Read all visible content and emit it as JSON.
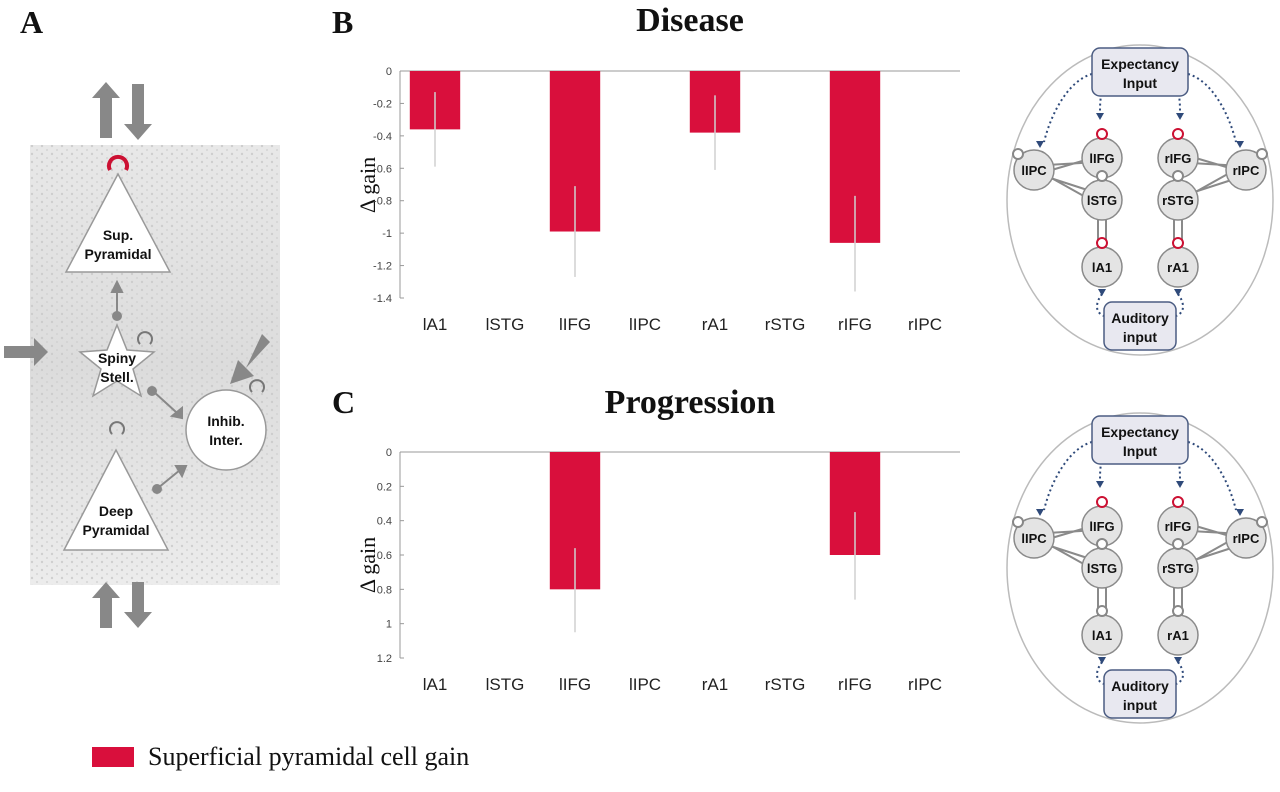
{
  "panels": {
    "a": "A",
    "b": "B",
    "c": "C"
  },
  "colors": {
    "bar": "#d90f3c",
    "error": "#d0d0d0",
    "axis": "#999999",
    "node": "#e4e4e4",
    "node_stroke": "#8a8a8a",
    "arrow": "#8a8a8a",
    "dotted": "#2f4a7a",
    "gain_circle": "#cc1133"
  },
  "circuit": {
    "sup_pyramidal": [
      "Sup.",
      "Pyramidal"
    ],
    "spiny_stellate": [
      "Spiny",
      "Stell."
    ],
    "inhib_inter": [
      "Inhib.",
      "Inter."
    ],
    "deep_pyramidal": [
      "Deep",
      "Pyramidal"
    ]
  },
  "network": {
    "expectancy": [
      "Expectancy",
      "Input"
    ],
    "auditory": [
      "Auditory",
      "input"
    ],
    "nodes": [
      "lIFG",
      "rIFG",
      "lIPC",
      "rIPC",
      "lSTG",
      "rSTG",
      "lA1",
      "rA1"
    ]
  },
  "legend": {
    "label": "Superficial pyramidal cell gain"
  },
  "chart_data": [
    {
      "type": "bar",
      "title": "Disease",
      "ylabel": "Δ gain",
      "categories": [
        "lA1",
        "lSTG",
        "lIFG",
        "lIPC",
        "rA1",
        "rSTG",
        "rIFG",
        "rIPC"
      ],
      "series": [
        {
          "name": "Superficial pyramidal cell gain",
          "values": [
            -0.36,
            0,
            -0.99,
            0,
            -0.38,
            0,
            -1.06,
            0
          ],
          "error_low": [
            -0.59,
            null,
            -1.27,
            null,
            -0.61,
            null,
            -1.36,
            null
          ],
          "error_high": [
            -0.13,
            null,
            -0.71,
            null,
            -0.15,
            null,
            -0.77,
            null
          ]
        }
      ],
      "ylim": [
        -1.4,
        0
      ],
      "yticks": [
        "0",
        "-0.2",
        "-0.4",
        "-0.6",
        "-0.8",
        "-1",
        "-1.2",
        "-1.4"
      ],
      "ytick_values": [
        0,
        -0.2,
        -0.4,
        -0.6,
        -0.8,
        -1,
        -1.2,
        -1.4
      ]
    },
    {
      "type": "bar",
      "title": "Progression",
      "ylabel": "Δ gain",
      "categories": [
        "lA1",
        "lSTG",
        "lIFG",
        "lIPC",
        "rA1",
        "rSTG",
        "rIFG",
        "rIPC"
      ],
      "series": [
        {
          "name": "Superficial pyramidal cell gain",
          "values": [
            0,
            0,
            0.8,
            0,
            0,
            0,
            0.6,
            0
          ],
          "error_low": [
            null,
            null,
            0.56,
            null,
            null,
            null,
            0.35,
            null
          ],
          "error_high": [
            null,
            null,
            1.05,
            null,
            null,
            null,
            0.86,
            null
          ]
        }
      ],
      "ylim": [
        0,
        1.2
      ],
      "yticks": [
        "0",
        "0.2",
        "0.4",
        "0.6",
        "0.8",
        "1",
        "1.2"
      ],
      "ytick_values": [
        0,
        0.2,
        0.4,
        0.6,
        0.8,
        1.0,
        1.2
      ]
    }
  ]
}
